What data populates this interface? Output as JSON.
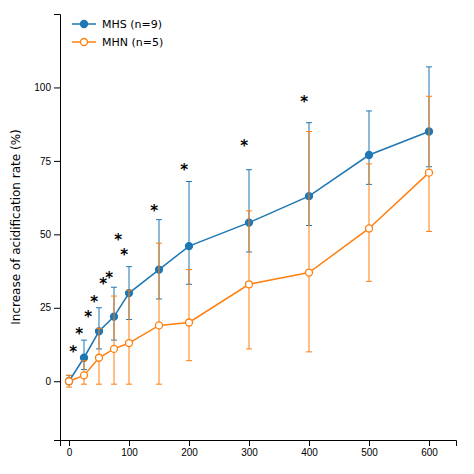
{
  "chart_data": {
    "type": "line",
    "ylabel": "Increase of acidification rate (%)",
    "x": [
      0,
      25,
      50,
      75,
      100,
      150,
      200,
      300,
      400,
      500,
      600
    ],
    "series": [
      {
        "name": "MHS (n=9)",
        "marker": "circle",
        "values": [
          0,
          8,
          17,
          22,
          30,
          38,
          46,
          54,
          63,
          77,
          85
        ],
        "error_upper": [
          2,
          6,
          8,
          10,
          9,
          17,
          22,
          18,
          25,
          15,
          22
        ],
        "error_lower": [
          1,
          4,
          6,
          8,
          9,
          10,
          13,
          10,
          10,
          10,
          12
        ]
      },
      {
        "name": "MHN (n=5)",
        "marker": "circle-open",
        "values": [
          0,
          2,
          8,
          11,
          13,
          19,
          20,
          33,
          37,
          52,
          71
        ],
        "error_upper": [
          2,
          5,
          10,
          18,
          18,
          28,
          18,
          25,
          48,
          22,
          26
        ],
        "error_lower": [
          2,
          3,
          9,
          12,
          14,
          20,
          13,
          22,
          27,
          18,
          20
        ]
      }
    ],
    "annotations": [
      {
        "text": "*",
        "x": 17,
        "y": 16
      },
      {
        "text": "*",
        "x": 42,
        "y": 27
      },
      {
        "text": "*",
        "x": 67,
        "y": 35
      },
      {
        "text": "*",
        "x": 92,
        "y": 43
      },
      {
        "text": "*",
        "x": 142,
        "y": 58
      },
      {
        "text": "*",
        "x": 192,
        "y": 72
      },
      {
        "text": "*",
        "x": 292,
        "y": 80
      },
      {
        "text": "*",
        "x": 392,
        "y": 95
      },
      {
        "text": "*",
        "x": 7,
        "y": 10
      },
      {
        "text": "*",
        "x": 32,
        "y": 22
      },
      {
        "text": "*",
        "x": 57,
        "y": 33
      },
      {
        "text": "*",
        "x": 82,
        "y": 48
      }
    ],
    "xlim": [
      -15,
      645
    ],
    "ylim": [
      -20,
      125
    ],
    "xticks": [
      0,
      100,
      200,
      300,
      400,
      500,
      600
    ],
    "yticks": [
      0,
      25,
      50,
      75,
      100
    ],
    "legend": "upper-left",
    "grid": false
  }
}
